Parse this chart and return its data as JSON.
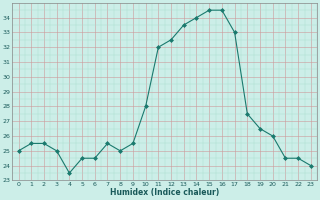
{
  "x": [
    0,
    1,
    2,
    3,
    4,
    5,
    6,
    7,
    8,
    9,
    10,
    11,
    12,
    13,
    14,
    15,
    16,
    17,
    18,
    19,
    20,
    21,
    22,
    23
  ],
  "y": [
    25,
    25.5,
    25.5,
    25,
    23.5,
    24.5,
    24.5,
    25.5,
    25,
    25.5,
    28,
    32,
    32.5,
    33.5,
    34,
    34.5,
    34.5,
    33,
    27.5,
    26.5,
    26,
    24.5,
    24.5,
    24
  ],
  "xlabel": "Humidex (Indice chaleur)",
  "ylim": [
    23,
    35
  ],
  "xlim": [
    -0.5,
    23.5
  ],
  "yticks": [
    23,
    24,
    25,
    26,
    27,
    28,
    29,
    30,
    31,
    32,
    33,
    34
  ],
  "xticks": [
    0,
    1,
    2,
    3,
    4,
    5,
    6,
    7,
    8,
    9,
    10,
    11,
    12,
    13,
    14,
    15,
    16,
    17,
    18,
    19,
    20,
    21,
    22,
    23
  ],
  "line_color": "#1a7a6e",
  "marker_color": "#1a7a6e",
  "bg_color": "#cceee8",
  "grid_color": "#aacccc",
  "grid_color_minor": "#bbdddd"
}
